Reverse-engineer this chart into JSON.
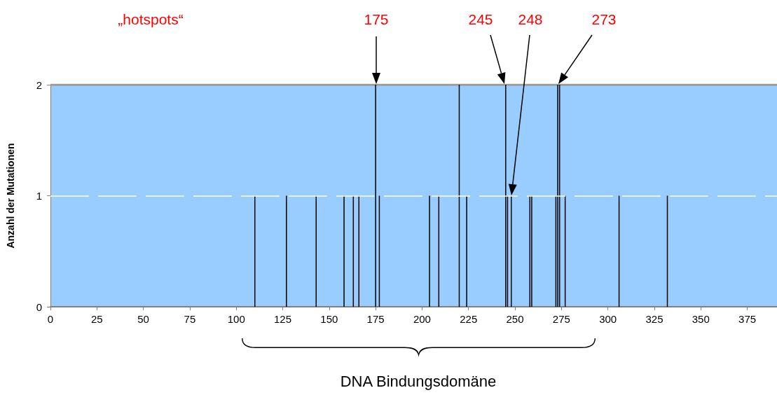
{
  "chart_data": {
    "type": "bar",
    "ylabel": "Anzahl der Mutationen",
    "x": [
      110,
      127,
      143,
      158,
      163,
      166,
      175,
      177,
      204,
      209,
      220,
      224,
      245,
      246,
      248,
      258,
      259,
      272,
      273,
      274,
      277,
      306,
      332
    ],
    "series": [
      {
        "color": "#000000",
        "values": [
          1,
          1,
          1,
          1,
          1,
          1,
          2,
          1,
          1,
          1,
          2,
          1,
          2,
          1,
          1,
          1,
          1,
          1,
          2,
          2,
          1,
          1,
          1
        ]
      }
    ],
    "xlim": [
      0,
      391
    ],
    "xticks": [
      0,
      25,
      50,
      75,
      100,
      125,
      150,
      175,
      200,
      225,
      250,
      275,
      300,
      325,
      350,
      375
    ],
    "ylim": [
      0,
      2
    ],
    "yticks": [
      0,
      1,
      2
    ],
    "ref_lines": [
      {
        "axis": "y",
        "value": 1,
        "color": "#ffffcc",
        "line_style": "dashed"
      }
    ],
    "annotations": [
      "„hotspots“",
      "175",
      "245",
      "248",
      "273",
      "DNA Bindungsdomäne"
    ]
  }
}
